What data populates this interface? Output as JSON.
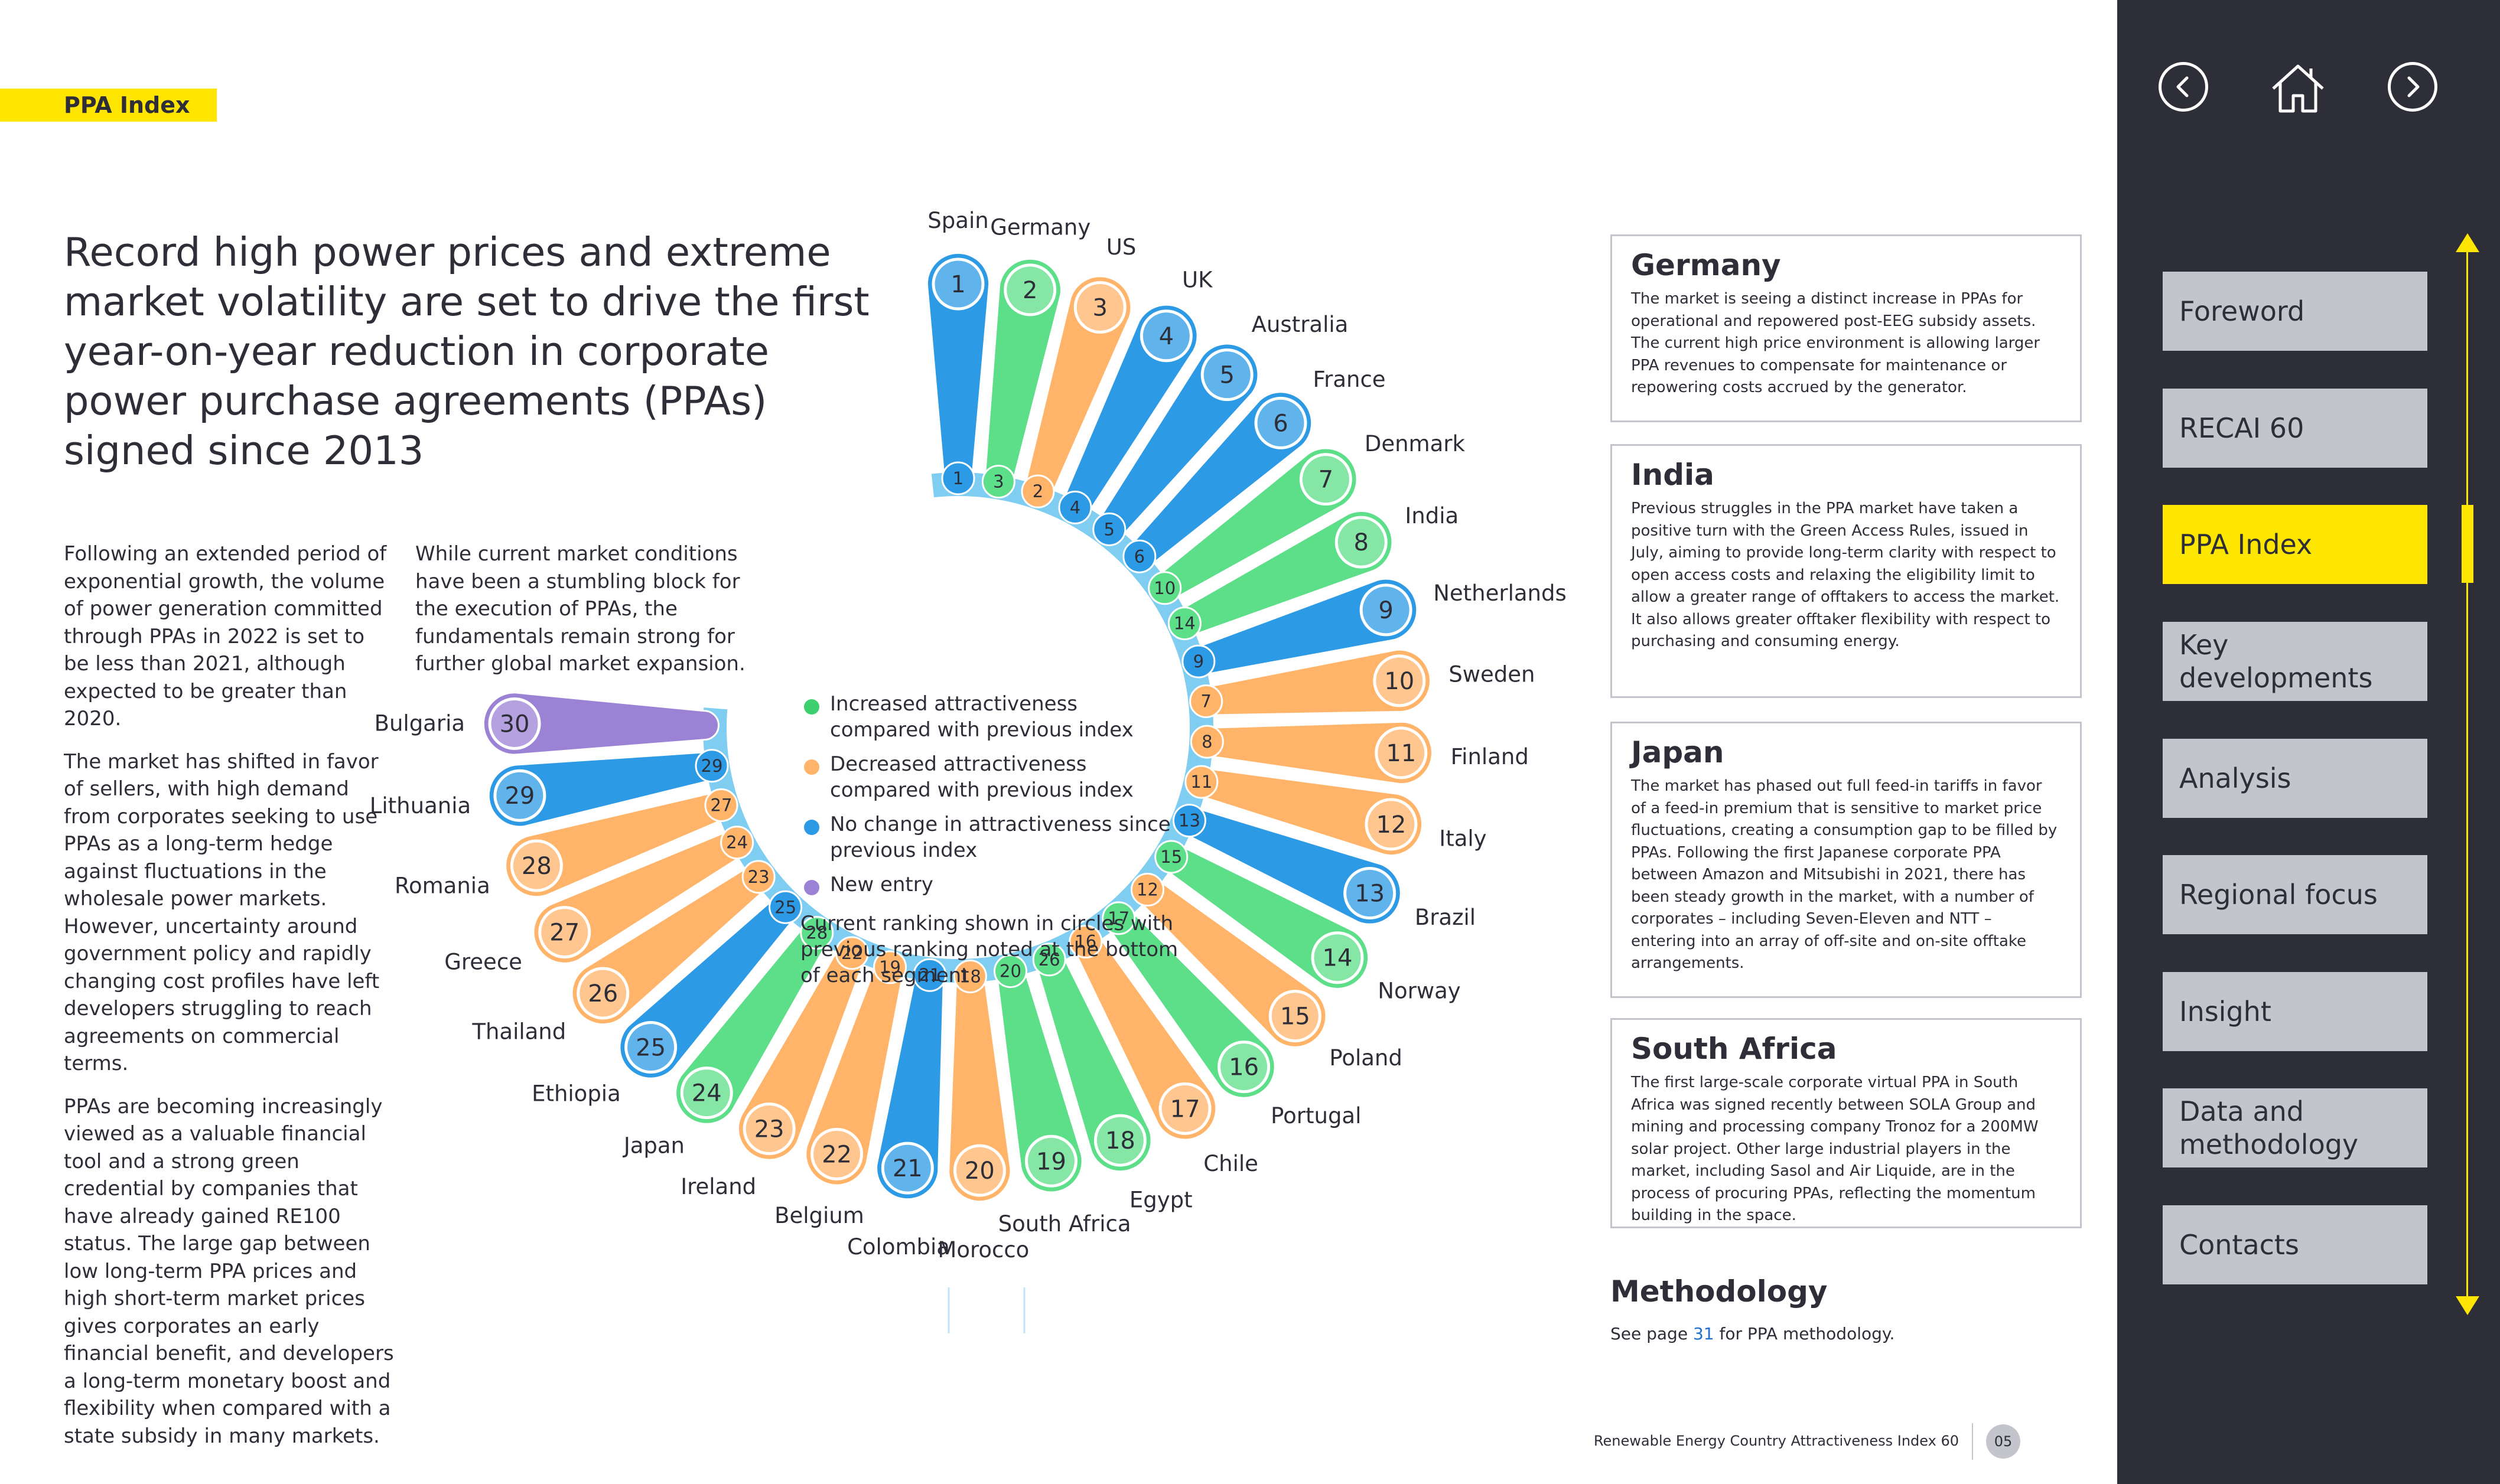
{
  "section_tag": "PPA Index",
  "headline": "Record high power prices and extreme market volatility are set to drive the first year-on-year reduction in corporate power purchase agreements (PPAs) signed since 2013",
  "column1": [
    "Following an extended period of exponential growth, the volume of power generation committed through PPAs in 2022 is set to be less than 2021, although expected to be greater than 2020.",
    "The market has shifted in favor of sellers, with high demand from corporates seeking to use PPAs as a long-term hedge against fluctuations in the wholesale power markets. However, uncertainty around government policy and rapidly changing cost profiles have left developers struggling to reach agreements on commercial terms.",
    "PPAs are becoming increasingly viewed as a valuable financial tool and a strong green credential by companies that have already gained RE100 status. The large gap between low long-term PPA prices and high short-term market prices gives corporates an early financial benefit, and developers a long-term monetary boost and flexibility when compared with a state subsidy in many markets."
  ],
  "column2": [
    "While current market conditions have been a stumbling block for the execution of PPAs, the fundamentals remain strong for further global market expansion."
  ],
  "legend": {
    "items": [
      {
        "label": "Increased attractiveness compared with previous index",
        "color": "#3ecf6f"
      },
      {
        "label": "Decreased attractiveness compared with previous index",
        "color": "#ffb46a"
      },
      {
        "label": "No change in attractiveness since previous index",
        "color": "#2d9ae6"
      },
      {
        "label": "New entry",
        "color": "#9c82d4"
      }
    ],
    "note": "Current ranking shown in circles with previous ranking noted at the bottom of each segment"
  },
  "colors": {
    "increased": "#5dde88",
    "decreased": "#ffb46a",
    "nochange": "#2d9ae6",
    "new": "#9c82d4",
    "ring": "#7fcef2",
    "yellow": "#ffe600",
    "dark": "#2e2e38"
  },
  "chart_data": {
    "type": "radial-ranking",
    "title": "PPA Index ranking",
    "entries": [
      {
        "rank": 1,
        "country": "Spain",
        "previous": "1",
        "change": "nochange"
      },
      {
        "rank": 2,
        "country": "Germany",
        "previous": "3",
        "change": "increased"
      },
      {
        "rank": 3,
        "country": "US",
        "previous": "2",
        "change": "decreased"
      },
      {
        "rank": 4,
        "country": "UK",
        "previous": "4",
        "change": "nochange"
      },
      {
        "rank": 5,
        "country": "Australia",
        "previous": "5",
        "change": "nochange"
      },
      {
        "rank": 6,
        "country": "France",
        "previous": "6",
        "change": "nochange"
      },
      {
        "rank": 7,
        "country": "Denmark",
        "previous": "10",
        "change": "increased"
      },
      {
        "rank": 8,
        "country": "India",
        "previous": "14",
        "change": "increased"
      },
      {
        "rank": 9,
        "country": "Netherlands",
        "previous": "9",
        "change": "nochange"
      },
      {
        "rank": 10,
        "country": "Sweden",
        "previous": "7",
        "change": "decreased"
      },
      {
        "rank": 11,
        "country": "Finland",
        "previous": "8",
        "change": "decreased"
      },
      {
        "rank": 12,
        "country": "Italy",
        "previous": "11",
        "change": "decreased"
      },
      {
        "rank": 13,
        "country": "Brazil",
        "previous": "13",
        "change": "nochange"
      },
      {
        "rank": 14,
        "country": "Norway",
        "previous": "15",
        "change": "increased"
      },
      {
        "rank": 15,
        "country": "Poland",
        "previous": "12",
        "change": "decreased"
      },
      {
        "rank": 16,
        "country": "Portugal",
        "previous": "17",
        "change": "increased"
      },
      {
        "rank": 17,
        "country": "Chile",
        "previous": "16",
        "change": "decreased"
      },
      {
        "rank": 18,
        "country": "Egypt",
        "previous": "26",
        "change": "increased"
      },
      {
        "rank": 19,
        "country": "South Africa",
        "previous": "20",
        "change": "increased"
      },
      {
        "rank": 20,
        "country": "Morocco",
        "previous": "18",
        "change": "decreased"
      },
      {
        "rank": 21,
        "country": "Colombia",
        "previous": "21",
        "change": "nochange"
      },
      {
        "rank": 22,
        "country": "Belgium",
        "previous": "19",
        "change": "decreased"
      },
      {
        "rank": 23,
        "country": "Ireland",
        "previous": "22",
        "change": "decreased"
      },
      {
        "rank": 24,
        "country": "Japan",
        "previous": "28",
        "change": "increased"
      },
      {
        "rank": 25,
        "country": "Ethiopia",
        "previous": "25",
        "change": "nochange"
      },
      {
        "rank": 26,
        "country": "Thailand",
        "previous": "23",
        "change": "decreased"
      },
      {
        "rank": 27,
        "country": "Greece",
        "previous": "24",
        "change": "decreased"
      },
      {
        "rank": 28,
        "country": "Romania",
        "previous": "27",
        "change": "decreased"
      },
      {
        "rank": 29,
        "country": "Lithuania",
        "previous": "29",
        "change": "nochange"
      },
      {
        "rank": 30,
        "country": "Bulgaria",
        "previous": "",
        "change": "new"
      }
    ]
  },
  "boxes": [
    {
      "title": "Germany",
      "text": "The market is seeing a distinct increase in PPAs for operational and repowered post-EEG subsidy assets. The current high price environment is allowing larger PPA revenues to compensate for maintenance or repowering costs accrued by the generator."
    },
    {
      "title": "India",
      "text": "Previous struggles in the PPA market have taken a positive turn with the Green Access Rules, issued in July, aiming to provide long-term clarity with respect to open access costs and relaxing the eligibility limit to allow a greater range of offtakers to access the market. It also allows greater offtaker flexibility with respect to purchasing and consuming energy."
    },
    {
      "title": "Japan",
      "text": "The market has phased out full feed-in tariffs in favor of a feed-in premium that is sensitive to market price fluctuations, creating a consumption gap to be filled by PPAs. Following the first Japanese corporate PPA between Amazon and Mitsubishi in 2021, there has been steady growth in the market, with a number of corporates – including Seven-Eleven and NTT – entering into an array of off-site and on-site offtake arrangements."
    },
    {
      "title": "South Africa",
      "text": "The first large-scale corporate virtual PPA in South Africa was signed recently between SOLA Group and mining and processing company Tronoz for a 200MW solar project. Other large industrial players in the market, including Sasol and Air Liquide, are in the process of procuring PPAs, reflecting the momentum building in the space."
    }
  ],
  "methodology": {
    "title": "Methodology",
    "text_before": "See page ",
    "page_link": "31",
    "text_after": " for PPA methodology."
  },
  "footer": {
    "publication": "Renewable Energy Country Attractiveness Index 60",
    "page_number": "05"
  },
  "sidebar": {
    "back_icon": "chevron-left-icon",
    "home_icon": "home-icon",
    "forward_icon": "chevron-right-icon",
    "items": [
      {
        "label": "Foreword",
        "active": false
      },
      {
        "label": "RECAI 60",
        "active": false
      },
      {
        "label": "PPA Index",
        "active": true
      },
      {
        "label": "Key developments",
        "active": false
      },
      {
        "label": "Analysis",
        "active": false
      },
      {
        "label": "Regional focus",
        "active": false
      },
      {
        "label": "Insight",
        "active": false
      },
      {
        "label": "Data and methodology",
        "active": false
      },
      {
        "label": "Contacts",
        "active": false
      }
    ]
  }
}
